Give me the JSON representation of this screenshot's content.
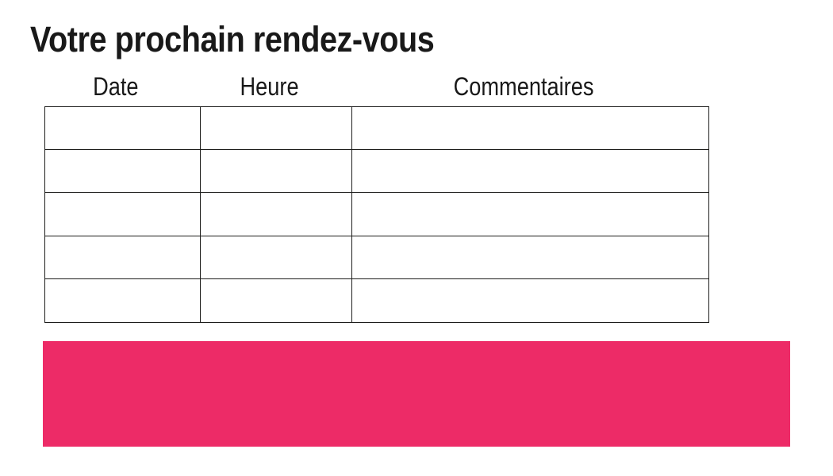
{
  "title": "Votre prochain rendez-vous",
  "table": {
    "headers": [
      "Date",
      "Heure",
      "Commentaires"
    ],
    "row_count": 5,
    "rows": [
      [
        "",
        "",
        ""
      ],
      [
        "",
        "",
        ""
      ],
      [
        "",
        "",
        ""
      ],
      [
        "",
        "",
        ""
      ],
      [
        "",
        "",
        ""
      ]
    ]
  },
  "accent_bar": {
    "color": "#ED2B67"
  },
  "colors": {
    "text": "#191919",
    "border": "#1d1d1b",
    "background": "#ffffff"
  }
}
